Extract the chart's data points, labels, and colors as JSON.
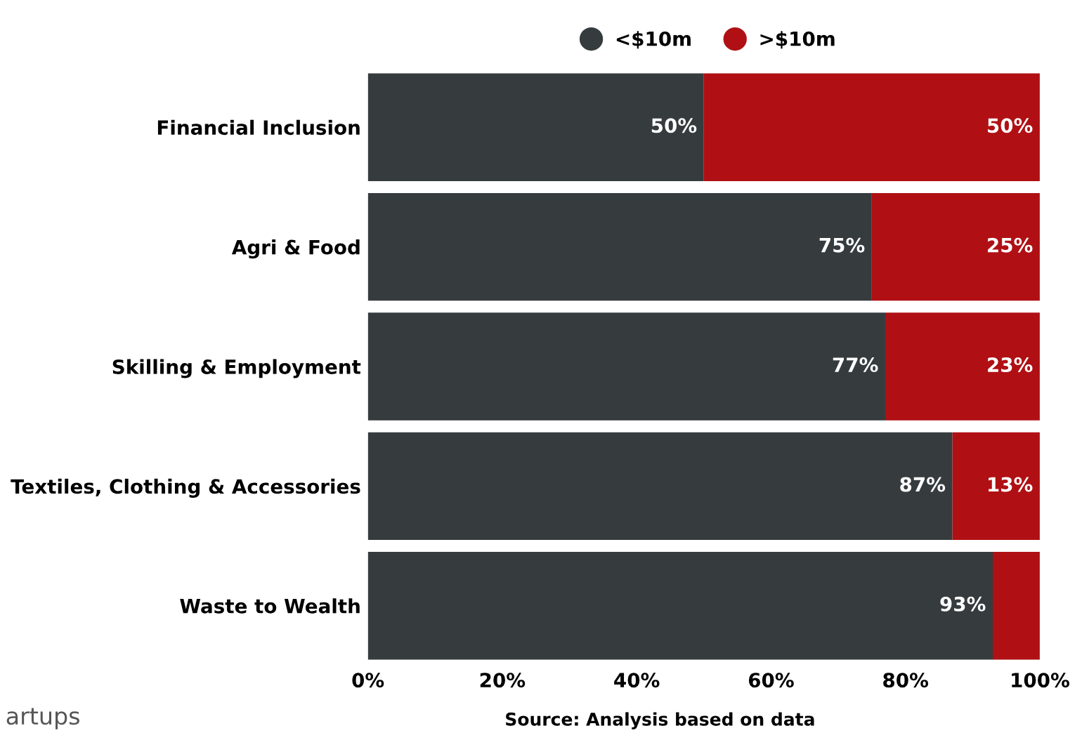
{
  "chart_data": {
    "type": "bar",
    "orientation": "horizontal",
    "stacked": true,
    "categories": [
      "Financial Inclusion",
      "Agri & Food",
      "Skilling & Employment",
      "Textiles, Clothing & Accessories",
      "Waste to Wealth"
    ],
    "series": [
      {
        "name": "<$10m",
        "color": "#363c3e",
        "values": [
          50,
          75,
          77,
          87,
          93
        ],
        "value_labels": [
          "50%",
          "75%",
          "77%",
          "87%",
          "93%"
        ]
      },
      {
        "name": ">$10m",
        "color": "#b01014",
        "values": [
          50,
          25,
          23,
          13,
          7
        ],
        "value_labels": [
          "50%",
          "25%",
          "23%",
          "13%",
          null
        ]
      }
    ],
    "xlim": [
      0,
      100
    ],
    "xticks": [
      {
        "value": 0,
        "label": "0%"
      },
      {
        "value": 20,
        "label": "20%"
      },
      {
        "value": 40,
        "label": "40%"
      },
      {
        "value": 60,
        "label": "60%"
      },
      {
        "value": 80,
        "label": "80%"
      },
      {
        "value": 100,
        "label": "100%"
      }
    ],
    "legend": "top",
    "grid": false,
    "annotations": [
      "Source: Analysis based on data",
      "artups"
    ]
  }
}
